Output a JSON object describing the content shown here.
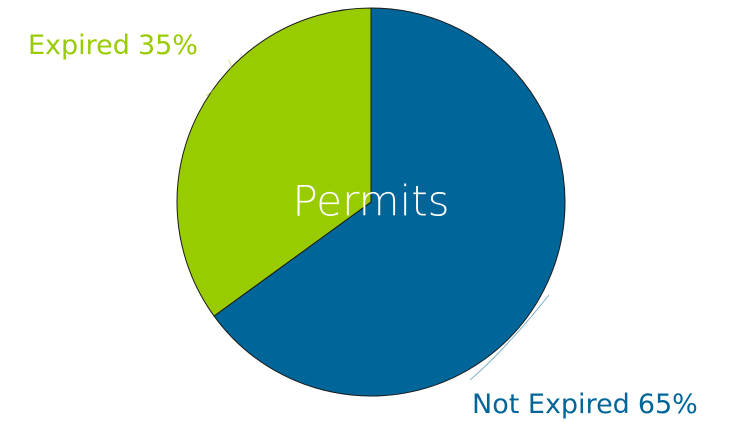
{
  "chart_data": {
    "type": "pie",
    "title": "Permits",
    "categories": [
      "Not Expired",
      "Expired"
    ],
    "values": [
      65,
      35
    ],
    "value_labels": [
      "65%",
      "35%"
    ],
    "colors": [
      "#006699",
      "#99cc00"
    ]
  }
}
